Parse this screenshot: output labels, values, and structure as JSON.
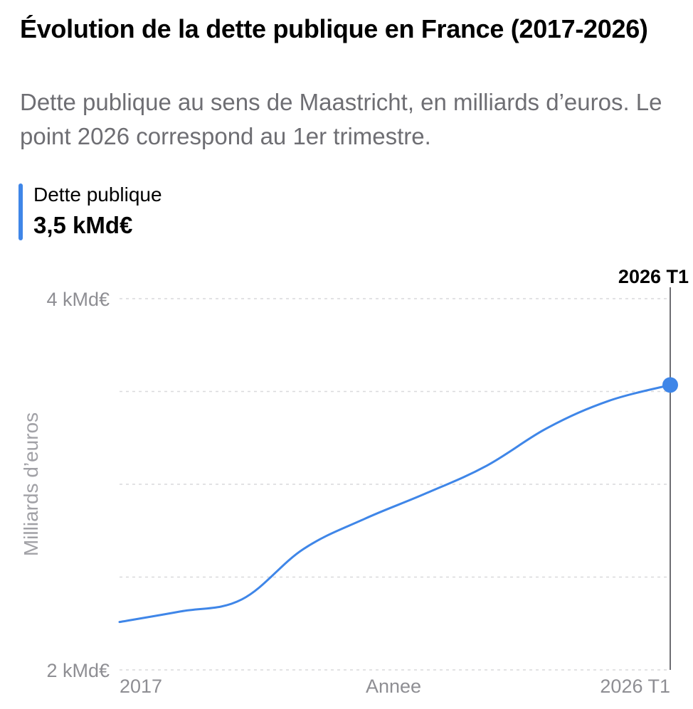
{
  "header": {
    "title": "Évolution de la dette publique en France (2017-2026)",
    "subtitle": "Dette publique au sens de Maastricht, en milliards d’euros. Le point 2026 correspond au 1er trimestre."
  },
  "legend": {
    "series_name": "Dette publique",
    "selected_value_label": "3,5 kMd€"
  },
  "chart_data": {
    "type": "line",
    "title": "Évolution de la dette publique en France (2017-2026)",
    "subtitle": "Dette publique au sens de Maastricht, en milliards d’euros. Le point 2026 correspond au 1er trimestre.",
    "xlabel": "Annee",
    "ylabel": "Milliards d’euros",
    "x_tick_labels": [
      "2017",
      "2026 T1"
    ],
    "y_tick_labels": [
      {
        "value": 2000,
        "label": "2 kMd€"
      },
      {
        "value": 4000,
        "label": "4 kMd€"
      }
    ],
    "ylim": [
      2000,
      4000
    ],
    "y_gridlines": [
      2000,
      2500,
      3000,
      3500,
      4000
    ],
    "grid": "horizontal dotted",
    "series": [
      {
        "name": "Dette publique",
        "color": "#3f86e8",
        "x": [
          "2017",
          "2018",
          "2019",
          "2020",
          "2021",
          "2022",
          "2023",
          "2024",
          "2025",
          "2026 T1"
        ],
        "values": [
          2258,
          2315,
          2380,
          2650,
          2813,
          2950,
          3100,
          3305,
          3450,
          3535
        ]
      }
    ],
    "selected_point": {
      "x": "2026 T1",
      "label": "2026 T1",
      "value_label": "3,5 kMd€"
    }
  }
}
